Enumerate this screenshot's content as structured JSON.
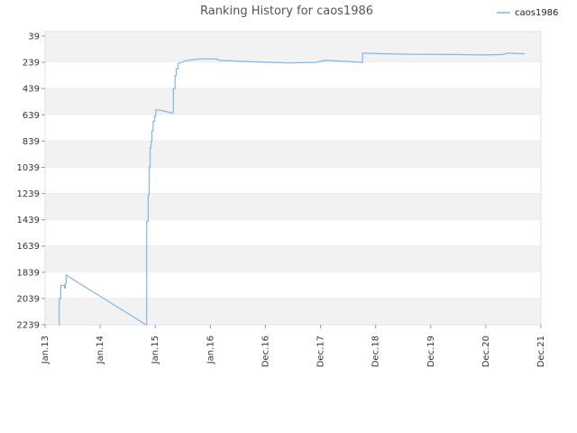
{
  "chart_data": {
    "type": "line",
    "title": "Ranking History for caos1986",
    "xlabel": "",
    "ylabel": "",
    "x_ticks": [
      "Jan.13",
      "Jan.14",
      "Jan.15",
      "Jan.16",
      "Dec.16",
      "Dec.17",
      "Dec.18",
      "Dec.19",
      "Dec.20",
      "Dec.21"
    ],
    "y_ticks": [
      "39",
      "239",
      "439",
      "639",
      "839",
      "1039",
      "1239",
      "1439",
      "1639",
      "1839",
      "2039",
      "2239"
    ],
    "ylim": [
      2239,
      39
    ],
    "y_inverted": true,
    "grid": "horizontal bands",
    "legend_position": "top-right",
    "series": [
      {
        "name": "caos1986",
        "color": "#7fb8e8",
        "points": [
          [
            "2013-04-01",
            2239
          ],
          [
            "2013-04-05",
            2039
          ],
          [
            "2013-04-12",
            2039
          ],
          [
            "2013-04-15",
            1939
          ],
          [
            "2013-05-10",
            1959
          ],
          [
            "2013-05-15",
            1929
          ],
          [
            "2013-05-20",
            1859
          ],
          [
            "2013-06-01",
            1869
          ],
          [
            "2014-11-01",
            2239
          ],
          [
            "2014-11-05",
            1449
          ],
          [
            "2014-11-15",
            1249
          ],
          [
            "2014-11-22",
            1039
          ],
          [
            "2014-11-28",
            889
          ],
          [
            "2014-12-05",
            839
          ],
          [
            "2014-12-10",
            759
          ],
          [
            "2014-12-18",
            689
          ],
          [
            "2014-12-28",
            649
          ],
          [
            "2015-01-05",
            599
          ],
          [
            "2015-02-01",
            604
          ],
          [
            "2015-03-15",
            614
          ],
          [
            "2015-04-15",
            624
          ],
          [
            "2015-05-01",
            439
          ],
          [
            "2015-05-12",
            339
          ],
          [
            "2015-05-20",
            289
          ],
          [
            "2015-06-01",
            249
          ],
          [
            "2015-06-25",
            239
          ],
          [
            "2015-07-15",
            229
          ],
          [
            "2015-09-15",
            217
          ],
          [
            "2015-11-15",
            212
          ],
          [
            "2016-02-15",
            214
          ],
          [
            "2016-02-20",
            224
          ],
          [
            "2016-06-01",
            229
          ],
          [
            "2016-09-01",
            234
          ],
          [
            "2017-01-01",
            239
          ],
          [
            "2017-05-01",
            244
          ],
          [
            "2017-11-01",
            239
          ],
          [
            "2018-01-01",
            224
          ],
          [
            "2018-04-01",
            229
          ],
          [
            "2018-09-01",
            239
          ],
          [
            "2018-09-05",
            169
          ],
          [
            "2019-02-01",
            174
          ],
          [
            "2019-08-01",
            178
          ],
          [
            "2020-05-01",
            179
          ],
          [
            "2020-12-01",
            183
          ],
          [
            "2021-04-01",
            179
          ],
          [
            "2021-04-20",
            169
          ],
          [
            "2021-08-15",
            174
          ]
        ]
      }
    ]
  }
}
